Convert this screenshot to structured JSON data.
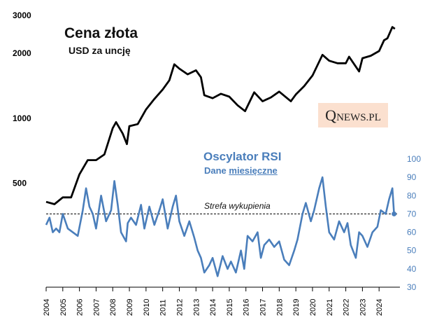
{
  "texts": {
    "title": "Cena złota",
    "subtitle": "USD za uncję",
    "rsi_title": "Oscylator RSI",
    "rsi_sub_prefix": "Dane ",
    "rsi_sub_underlined": "miesięczne",
    "zone_label": "Strefa wykupienia",
    "logo_q": "Q",
    "logo_rest": "NEWS.PL"
  },
  "colors": {
    "price_line": "#000000",
    "rsi_line": "#4a7ebb",
    "rsi_axis": "#4a7ebb",
    "logo_bg": "#fbe0cf"
  },
  "chart_data": [
    {
      "type": "line",
      "title": "Cena złota",
      "ylabel": "USD za uncję",
      "y_scale": "log",
      "ylim": [
        300,
        3000
      ],
      "y_ticks": [
        500,
        1000,
        2000,
        3000
      ],
      "y_tick_labels": [
        "500",
        "1000",
        "2000",
        "3000"
      ],
      "x_ticks": [
        2004,
        2005,
        2006,
        2007,
        2008,
        2009,
        2010,
        2011,
        2012,
        2013,
        2014,
        2015,
        2016,
        2017,
        2018,
        2019,
        2020,
        2021,
        2022,
        2023,
        2024
      ],
      "series": [
        {
          "name": "Cena złota (USD/oz)",
          "x": [
            2004.0,
            2004.5,
            2005.0,
            2005.5,
            2006.0,
            2006.5,
            2007.0,
            2007.5,
            2008.0,
            2008.2,
            2008.6,
            2008.85,
            2009.0,
            2009.5,
            2010.0,
            2010.5,
            2011.0,
            2011.4,
            2011.7,
            2012.0,
            2012.5,
            2013.0,
            2013.3,
            2013.5,
            2014.0,
            2014.5,
            2015.0,
            2015.5,
            2015.95,
            2016.5,
            2017.0,
            2017.5,
            2018.0,
            2018.7,
            2019.0,
            2019.5,
            2020.0,
            2020.6,
            2021.0,
            2021.5,
            2022.0,
            2022.2,
            2022.8,
            2023.0,
            2023.5,
            2024.0,
            2024.3,
            2024.5,
            2024.8,
            2024.95
          ],
          "y": [
            410,
            400,
            430,
            430,
            550,
            640,
            640,
            680,
            900,
            960,
            850,
            760,
            920,
            940,
            1100,
            1230,
            1360,
            1500,
            1780,
            1700,
            1600,
            1670,
            1550,
            1280,
            1240,
            1300,
            1260,
            1150,
            1080,
            1320,
            1200,
            1250,
            1330,
            1200,
            1290,
            1410,
            1580,
            1970,
            1850,
            1800,
            1800,
            1930,
            1650,
            1900,
            1950,
            2050,
            2300,
            2350,
            2650,
            2600
          ]
        }
      ]
    },
    {
      "type": "line",
      "title": "Oscylator RSI",
      "subtitle": "Dane miesięczne",
      "ylim": [
        30,
        100
      ],
      "y_ticks": [
        30,
        40,
        50,
        60,
        70,
        80,
        90,
        100
      ],
      "y_tick_labels": [
        "30",
        "40",
        "50",
        "60",
        "70",
        "80",
        "90",
        "100"
      ],
      "reference_line": {
        "value": 70,
        "label": "Strefa wykupienia"
      },
      "series": [
        {
          "name": "RSI",
          "x": [
            2004.0,
            2004.2,
            2004.4,
            2004.6,
            2004.8,
            2005.0,
            2005.3,
            2005.6,
            2005.9,
            2006.2,
            2006.4,
            2006.6,
            2006.8,
            2007.0,
            2007.3,
            2007.6,
            2007.9,
            2008.1,
            2008.3,
            2008.5,
            2008.8,
            2008.9,
            2009.1,
            2009.4,
            2009.7,
            2009.9,
            2010.2,
            2010.5,
            2010.8,
            2011.0,
            2011.3,
            2011.6,
            2011.8,
            2012.0,
            2012.3,
            2012.6,
            2012.9,
            2013.1,
            2013.3,
            2013.5,
            2013.8,
            2014.0,
            2014.3,
            2014.6,
            2014.9,
            2015.1,
            2015.4,
            2015.7,
            2015.9,
            2016.1,
            2016.4,
            2016.7,
            2016.9,
            2017.1,
            2017.4,
            2017.7,
            2018.0,
            2018.3,
            2018.6,
            2018.9,
            2019.1,
            2019.4,
            2019.6,
            2019.9,
            2020.1,
            2020.4,
            2020.6,
            2020.8,
            2021.0,
            2021.3,
            2021.6,
            2021.9,
            2022.1,
            2022.3,
            2022.6,
            2022.8,
            2023.0,
            2023.3,
            2023.6,
            2023.9,
            2024.1,
            2024.4,
            2024.6,
            2024.8,
            2024.9
          ],
          "y": [
            64,
            68,
            60,
            62,
            60,
            70,
            62,
            60,
            58,
            72,
            84,
            74,
            70,
            62,
            80,
            66,
            72,
            88,
            75,
            60,
            55,
            65,
            68,
            64,
            75,
            62,
            74,
            64,
            72,
            78,
            62,
            74,
            80,
            66,
            58,
            66,
            57,
            50,
            46,
            38,
            42,
            46,
            36,
            47,
            40,
            44,
            38,
            50,
            40,
            58,
            55,
            60,
            46,
            53,
            56,
            52,
            55,
            45,
            42,
            50,
            56,
            70,
            76,
            66,
            72,
            84,
            90,
            74,
            60,
            56,
            66,
            60,
            65,
            53,
            46,
            60,
            58,
            52,
            60,
            63,
            72,
            70,
            78,
            84,
            70
          ]
        }
      ]
    }
  ]
}
